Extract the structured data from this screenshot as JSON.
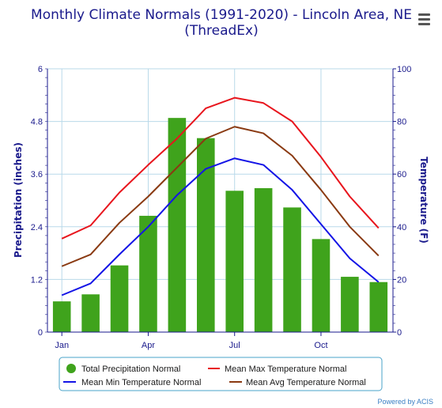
{
  "chart_data": {
    "type": "bar",
    "title": "Monthly Climate Normals (1991-2020) - Lincoln Area, NE",
    "subtitle": "(ThreadEx)",
    "categories": [
      "Jan",
      "Feb",
      "Mar",
      "Apr",
      "May",
      "Jun",
      "Jul",
      "Aug",
      "Sep",
      "Oct",
      "Nov",
      "Dec"
    ],
    "x_tick_labels": [
      "Jan",
      "Apr",
      "Jul",
      "Oct"
    ],
    "ylabel_left": "Precipitation (inches)",
    "ylabel_right": "Temperature (F)",
    "ylim_left": [
      0,
      6
    ],
    "ylim_right": [
      0,
      100
    ],
    "yticks_left": [
      "0",
      "1.2",
      "2.4",
      "3.6",
      "4.8",
      "6"
    ],
    "yticks_right": [
      "0",
      "20",
      "40",
      "60",
      "80",
      "100"
    ],
    "grid": true,
    "legend_position": "bottom",
    "series": [
      {
        "name": "Total Precipitation Normal",
        "type": "bar",
        "axis": "left",
        "color": "#3fa31c",
        "values": [
          0.7,
          0.86,
          1.52,
          2.65,
          4.88,
          4.42,
          3.22,
          3.28,
          2.84,
          2.12,
          1.26,
          1.14
        ]
      },
      {
        "name": "Mean Max Temperature Normal",
        "type": "line",
        "axis": "right",
        "color": "#e8151d",
        "values": [
          35.5,
          40.5,
          53,
          63.5,
          73.5,
          85,
          89,
          87,
          80,
          66.5,
          51.5,
          39.5
        ]
      },
      {
        "name": "Mean Min Temperature Normal",
        "type": "line",
        "axis": "right",
        "color": "#1414e6",
        "values": [
          14,
          18.5,
          29.5,
          40,
          52,
          62,
          66,
          63.5,
          54,
          41,
          28,
          19
        ]
      },
      {
        "name": "Mean Avg Temperature Normal",
        "type": "line",
        "axis": "right",
        "color": "#8a3a12",
        "values": [
          25,
          29.5,
          41.5,
          51.5,
          62.5,
          73.5,
          78,
          75.5,
          67,
          54,
          40,
          29
        ]
      }
    ]
  },
  "credits": "Powered by ACIS",
  "menu_icon": "hamburger-menu-icon"
}
